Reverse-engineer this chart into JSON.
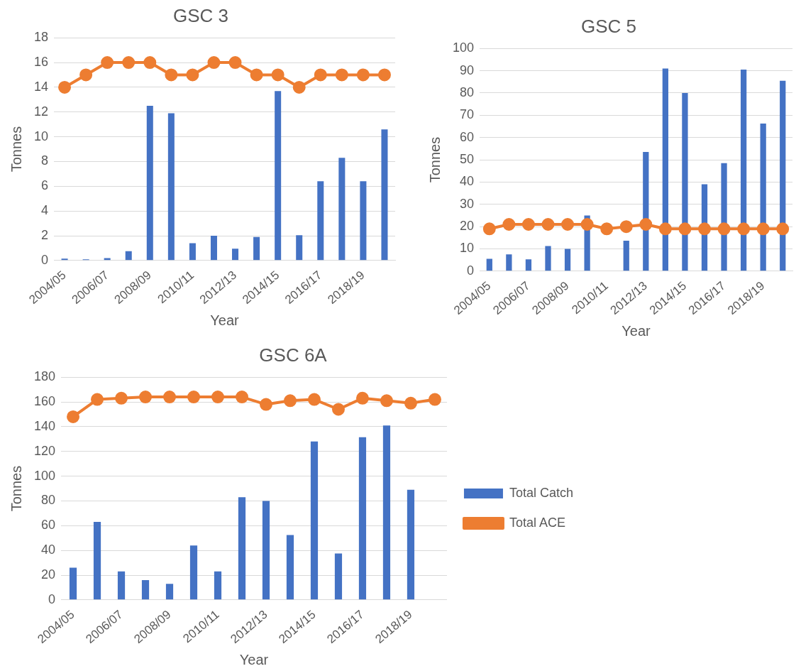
{
  "chart_data": [
    {
      "type": "bar",
      "title": "GSC 3",
      "xlabel": "Year",
      "ylabel": "Tonnes",
      "categories": [
        "2004/05",
        null,
        "2006/07",
        null,
        "2008/09",
        null,
        "2010/11",
        null,
        "2012/13",
        null,
        "2014/15",
        null,
        "2016/17",
        null,
        "2018/19",
        null
      ],
      "ylim": [
        0,
        18
      ],
      "yticks": [
        0,
        2,
        4,
        6,
        8,
        10,
        12,
        14,
        16,
        18
      ],
      "grid": "y",
      "legend": false,
      "series": [
        {
          "color": "#4472c4",
          "values": [
            0.15,
            0.1,
            0.2,
            0.75,
            12.5,
            11.9,
            1.4,
            2,
            0.95,
            1.9,
            13.7,
            2.05,
            6.4,
            8.3,
            6.4,
            10.6
          ]
        },
        {
          "type": "line",
          "color": "#ed7d31",
          "marker": "circle",
          "line_style": "solid",
          "values": [
            14,
            15,
            16,
            16,
            16,
            15,
            15,
            16,
            16,
            15,
            15,
            14,
            15,
            15,
            15,
            15
          ]
        }
      ]
    },
    {
      "type": "bar",
      "title": "GSC 5",
      "xlabel": "Year",
      "ylabel": "Tonnes",
      "categories": [
        "2004/05",
        null,
        "2006/07",
        null,
        "2008/09",
        null,
        "2010/11",
        null,
        "2012/13",
        null,
        "2014/15",
        null,
        "2016/17",
        null,
        "2018/19",
        null
      ],
      "ylim": [
        0,
        100
      ],
      "yticks": [
        0,
        10,
        20,
        30,
        40,
        50,
        60,
        70,
        80,
        90,
        100
      ],
      "grid": "y",
      "legend": false,
      "series": [
        {
          "color": "#4472c4",
          "values": [
            5.5,
            7.5,
            5.3,
            11.3,
            10,
            25,
            null,
            13.7,
            53.5,
            91,
            80,
            39,
            48.5,
            90.5,
            66.3,
            85.5
          ]
        },
        {
          "type": "line",
          "color": "#ed7d31",
          "marker": "circle",
          "line_style": "solid",
          "values": [
            19,
            21,
            21,
            21,
            21,
            21,
            19,
            20,
            21,
            19,
            19,
            19,
            19,
            19,
            19,
            19
          ]
        }
      ]
    },
    {
      "type": "bar",
      "title": "GSC 6A",
      "xlabel": "Year",
      "ylabel": "Tonnes",
      "categories": [
        "2004/05",
        null,
        "2006/07",
        null,
        "2008/09",
        null,
        "2010/11",
        null,
        "2012/13",
        null,
        "2014/15",
        null,
        "2016/17",
        null,
        "2018/19",
        null
      ],
      "ylim": [
        0,
        180
      ],
      "yticks": [
        0,
        20,
        40,
        60,
        80,
        100,
        120,
        140,
        160,
        180
      ],
      "grid": "y",
      "legend": "right",
      "series": [
        {
          "name": "Total Catch",
          "color": "#4472c4",
          "values": [
            26,
            63,
            23,
            16,
            13,
            44,
            23,
            83,
            80,
            52.5,
            128,
            37.5,
            131.5,
            141,
            89,
            null
          ]
        },
        {
          "type": "line",
          "name": "Total ACE",
          "color": "#ed7d31",
          "marker": "circle",
          "line_style": "solid",
          "values": [
            148,
            162,
            163,
            164,
            164,
            164,
            164,
            164,
            158,
            161,
            162,
            154,
            163,
            161,
            159,
            162
          ]
        }
      ]
    }
  ]
}
